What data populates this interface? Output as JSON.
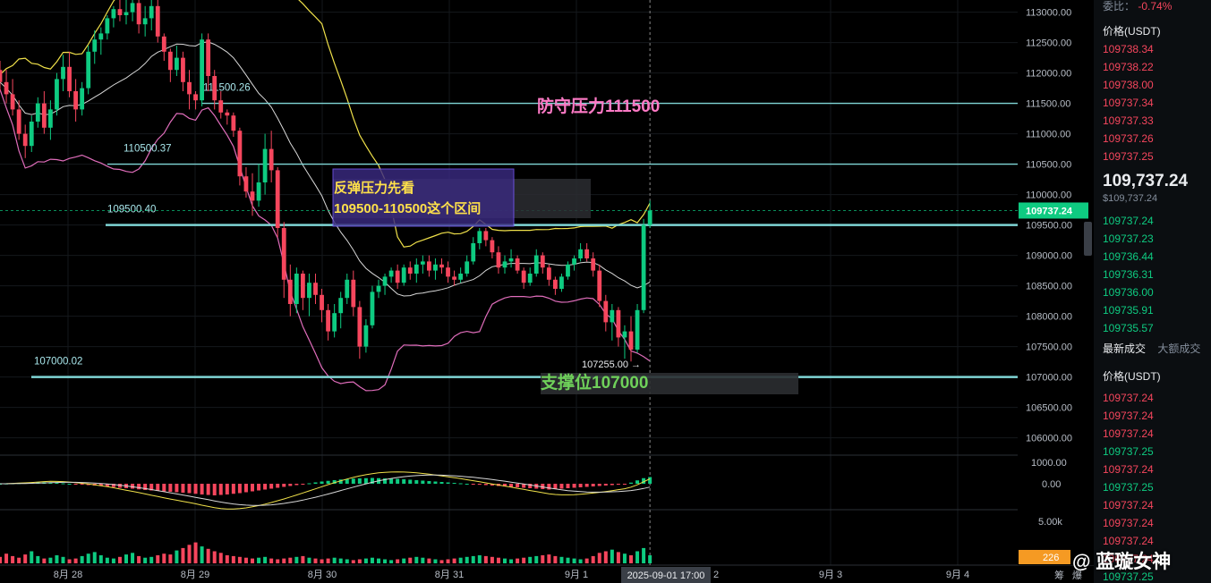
{
  "colors": {
    "up": "#0ecb81",
    "down": "#f6465d",
    "level": "#7fd6d6",
    "upper_band": "#f0e14a",
    "lower_band": "#e06dbb",
    "mid_band": "#d8d8d8"
  },
  "chart_data": {
    "type": "candlestick",
    "title": "",
    "price_axis": {
      "ylim": [
        105700,
        113200
      ],
      "ticks": [
        "113000.00",
        "112500.00",
        "112000.00",
        "111500.00",
        "111000.00",
        "110500.00",
        "110000.00",
        "109500.00",
        "109000.00",
        "108500.00",
        "108000.00",
        "107500.00",
        "107000.00",
        "106500.00",
        "106000.00"
      ],
      "current_price": "109737.24"
    },
    "x_axis": {
      "ticks": [
        "8月 28",
        "8月 29",
        "8月 30",
        "8月 31",
        "9月 1",
        "9月 3",
        "9月 4"
      ],
      "crosshair_label": "2025-09-01 17:00",
      "overflow_tick": "2",
      "corner_labels": [
        "筹",
        "爆"
      ]
    },
    "horizontal_levels": [
      {
        "value": 111500.26,
        "label": "111500.26"
      },
      {
        "value": 110500.37,
        "label": "110500.37"
      },
      {
        "value": 109500.4,
        "label": "109500.40"
      },
      {
        "value": 107000.02,
        "label": "107000.02"
      }
    ],
    "low_marker": "107255.00 →",
    "annotations": [
      {
        "text": "防守压力111500",
        "color": "#ff7ac6"
      },
      {
        "text": "支撑位107000",
        "color": "#6fd15a"
      },
      {
        "text": "反弹压力先看",
        "color": "#ffe14a"
      },
      {
        "text": "109500-110500这个区间",
        "color": "#ffe14a"
      }
    ],
    "candles": [
      [
        112050,
        112200,
        111700,
        111850
      ],
      [
        111850,
        112050,
        111500,
        111650
      ],
      [
        111650,
        111900,
        111300,
        111400
      ],
      [
        111400,
        111550,
        110900,
        111000
      ],
      [
        111000,
        111150,
        110600,
        110800
      ],
      [
        110800,
        111300,
        110700,
        111200
      ],
      [
        111200,
        111600,
        111100,
        111500
      ],
      [
        111500,
        111700,
        111000,
        111100
      ],
      [
        111100,
        111550,
        110900,
        111400
      ],
      [
        111400,
        112000,
        111300,
        111900
      ],
      [
        111900,
        112300,
        111700,
        112100
      ],
      [
        112100,
        112350,
        111600,
        111700
      ],
      [
        111700,
        111900,
        111200,
        111400
      ],
      [
        111400,
        111850,
        111300,
        111750
      ],
      [
        111750,
        112450,
        111650,
        112350
      ],
      [
        112350,
        112700,
        112150,
        112550
      ],
      [
        112550,
        112750,
        112300,
        112650
      ],
      [
        112650,
        112950,
        112550,
        112900
      ],
      [
        112900,
        113100,
        112750,
        113050
      ],
      [
        113050,
        113250,
        112850,
        112950
      ],
      [
        112950,
        113200,
        112800,
        113000
      ],
      [
        113000,
        113250,
        112850,
        113150
      ],
      [
        113150,
        113250,
        112650,
        112800
      ],
      [
        112800,
        113100,
        112600,
        112900
      ],
      [
        112900,
        113200,
        112700,
        113100
      ],
      [
        113100,
        113250,
        112500,
        112600
      ],
      [
        112600,
        112650,
        112200,
        112350
      ],
      [
        112350,
        112400,
        111850,
        112050
      ],
      [
        112050,
        112450,
        111950,
        112250
      ],
      [
        112250,
        112350,
        111700,
        111850
      ],
      [
        111850,
        112050,
        111400,
        111650
      ],
      [
        111650,
        111700,
        111400,
        111550
      ],
      [
        111550,
        112650,
        111450,
        112550
      ],
      [
        112550,
        112650,
        111700,
        111950
      ],
      [
        111950,
        112050,
        111400,
        111550
      ],
      [
        111550,
        111700,
        111250,
        111350
      ],
      [
        111350,
        111400,
        111150,
        111300
      ],
      [
        111300,
        111350,
        110950,
        111050
      ],
      [
        111050,
        111100,
        110150,
        110300
      ],
      [
        110300,
        110450,
        109950,
        110050
      ],
      [
        110050,
        110350,
        109650,
        109900
      ],
      [
        109900,
        110500,
        109800,
        110200
      ],
      [
        110200,
        111000,
        110000,
        110750
      ],
      [
        110750,
        111050,
        110200,
        110400
      ],
      [
        110400,
        110450,
        109300,
        109450
      ],
      [
        109450,
        109550,
        108300,
        108600
      ],
      [
        108600,
        108850,
        108000,
        108200
      ],
      [
        108200,
        108800,
        108050,
        108700
      ],
      [
        108700,
        108750,
        108100,
        108300
      ],
      [
        108300,
        108700,
        108000,
        108550
      ],
      [
        108550,
        108700,
        108200,
        108350
      ],
      [
        108350,
        108450,
        107900,
        108100
      ],
      [
        108100,
        108200,
        107600,
        107750
      ],
      [
        107750,
        108200,
        107650,
        108050
      ],
      [
        108050,
        108400,
        107800,
        108300
      ],
      [
        108300,
        108700,
        108200,
        108600
      ],
      [
        108600,
        108750,
        108000,
        108150
      ],
      [
        108150,
        108250,
        107300,
        107500
      ],
      [
        107500,
        107950,
        107400,
        107850
      ],
      [
        107850,
        108500,
        107800,
        108400
      ],
      [
        108400,
        108600,
        108300,
        108500
      ],
      [
        108500,
        108700,
        108350,
        108650
      ],
      [
        108650,
        108800,
        108550,
        108750
      ],
      [
        108750,
        108850,
        108450,
        108550
      ],
      [
        108550,
        108850,
        108500,
        108800
      ],
      [
        108800,
        108900,
        108600,
        108700
      ],
      [
        108700,
        108950,
        108550,
        108850
      ],
      [
        108850,
        109000,
        108700,
        108900
      ],
      [
        108900,
        109000,
        108650,
        108750
      ],
      [
        108750,
        108950,
        108600,
        108850
      ],
      [
        108850,
        108950,
        108700,
        108800
      ],
      [
        108800,
        108900,
        108550,
        108650
      ],
      [
        108650,
        108750,
        108500,
        108600
      ],
      [
        108600,
        108800,
        108550,
        108700
      ],
      [
        108700,
        109000,
        108650,
        108900
      ],
      [
        108900,
        109300,
        108850,
        109200
      ],
      [
        109200,
        109450,
        109100,
        109400
      ],
      [
        109400,
        109450,
        109150,
        109250
      ],
      [
        109250,
        109300,
        108950,
        109050
      ],
      [
        109050,
        109150,
        108700,
        108800
      ],
      [
        108800,
        109000,
        108700,
        108900
      ],
      [
        108900,
        109100,
        108800,
        108950
      ],
      [
        108950,
        109000,
        108700,
        108750
      ],
      [
        108750,
        108800,
        108450,
        108550
      ],
      [
        108550,
        108800,
        108500,
        108700
      ],
      [
        108700,
        109100,
        108650,
        109000
      ],
      [
        109000,
        109050,
        108700,
        108800
      ],
      [
        108800,
        108850,
        108500,
        108600
      ],
      [
        108600,
        108650,
        108350,
        108450
      ],
      [
        108450,
        108700,
        108400,
        108650
      ],
      [
        108650,
        108900,
        108600,
        108850
      ],
      [
        108850,
        109000,
        108750,
        108950
      ],
      [
        108950,
        109200,
        108900,
        109100
      ],
      [
        109100,
        109200,
        108900,
        108950
      ],
      [
        108950,
        109050,
        108650,
        108750
      ],
      [
        108750,
        108850,
        108150,
        108250
      ],
      [
        108250,
        108350,
        107750,
        107900
      ],
      [
        107900,
        108200,
        107600,
        108100
      ],
      [
        108100,
        108150,
        107500,
        107650
      ],
      [
        107650,
        107850,
        107300,
        107750
      ],
      [
        107750,
        108000,
        107255,
        107450
      ],
      [
        107450,
        108200,
        107400,
        108100
      ],
      [
        108100,
        109600,
        108050,
        109500
      ],
      [
        109500,
        109900,
        109450,
        109737
      ]
    ],
    "indicator_panel": {
      "ticks": [
        "1000.00",
        "0.00"
      ],
      "histogram": [
        0,
        10,
        20,
        30,
        40,
        50,
        60,
        70,
        60,
        40,
        20,
        0,
        -20,
        -40,
        -60,
        -80,
        -100,
        -120,
        -150,
        -180,
        -200,
        -220,
        -250,
        -280,
        -300,
        -320,
        -340,
        -360,
        -380,
        -400,
        -420,
        -450,
        -480,
        -500,
        -520,
        -500,
        -480,
        -450,
        -420,
        -380,
        -340,
        -300,
        -260,
        -220,
        -180,
        -140,
        -100,
        -60,
        -20,
        20,
        60,
        100,
        130,
        160,
        190,
        210,
        230,
        240,
        250,
        260,
        250,
        240,
        230,
        220,
        200,
        180,
        160,
        140,
        120,
        100,
        80,
        60,
        40,
        20,
        0,
        -20,
        -40,
        -60,
        -80,
        -100,
        -120,
        -140,
        -160,
        -180,
        -200,
        -220,
        -240,
        -260,
        -240,
        -220,
        -200,
        -180,
        -160,
        -140,
        -120,
        -100,
        -80,
        -60,
        -40,
        -20,
        50,
        150,
        250,
        300
      ]
    },
    "volume_panel": {
      "ticks": [
        "5.00k"
      ],
      "current_volume": "226",
      "values": [
        800,
        1200,
        900,
        700,
        1100,
        1500,
        900,
        600,
        700,
        1000,
        800,
        500,
        600,
        900,
        1200,
        1400,
        1000,
        700,
        600,
        800,
        1100,
        1300,
        900,
        700,
        800,
        1000,
        1200,
        1100,
        1600,
        1900,
        2300,
        2600,
        2100,
        1800,
        1500,
        1300,
        1000,
        900,
        800,
        700,
        600,
        700,
        800,
        600,
        500,
        600,
        700,
        800,
        900,
        700,
        600,
        500,
        600,
        700,
        600,
        500,
        400,
        500,
        600,
        700,
        600,
        500,
        400,
        500,
        600,
        700,
        800,
        700,
        600,
        500,
        400,
        500,
        600,
        700,
        800,
        900,
        1000,
        900,
        800,
        700,
        600,
        500,
        600,
        700,
        800,
        900,
        1000,
        1100,
        900,
        800,
        700,
        600,
        500,
        600,
        900,
        1300,
        1500,
        1700,
        1400,
        1200,
        1000,
        1500,
        1900,
        1000
      ]
    }
  },
  "order_book": {
    "ratio_label": "委比",
    "ratio_value": "-0.74%",
    "price_header": "价格(USDT)",
    "asks": [
      "109738.34",
      "109738.22",
      "109738.00",
      "109737.34",
      "109737.33",
      "109737.26",
      "109737.25"
    ],
    "current_price": "109,737.24",
    "current_price_usd": "$109,737.24",
    "bids": [
      "109737.24",
      "109737.23",
      "109736.44",
      "109736.31",
      "109736.00",
      "109735.91",
      "109735.57"
    ],
    "tabs": [
      "最新成交",
      "大额成交"
    ],
    "trades_header": "价格(USDT)",
    "trades": [
      {
        "price": "109737.24",
        "side": "red"
      },
      {
        "price": "109737.24",
        "side": "red"
      },
      {
        "price": "109737.24",
        "side": "red"
      },
      {
        "price": "109737.25",
        "side": "green"
      },
      {
        "price": "109737.24",
        "side": "red"
      },
      {
        "price": "109737.25",
        "side": "green"
      },
      {
        "price": "109737.24",
        "side": "red"
      },
      {
        "price": "109737.24",
        "side": "red"
      },
      {
        "price": "109737.24",
        "side": "red"
      },
      {
        "price": "109737.24",
        "side": "red"
      },
      {
        "price": "109737.25",
        "side": "green"
      }
    ]
  },
  "watermark": "@ 蓝璇女神"
}
